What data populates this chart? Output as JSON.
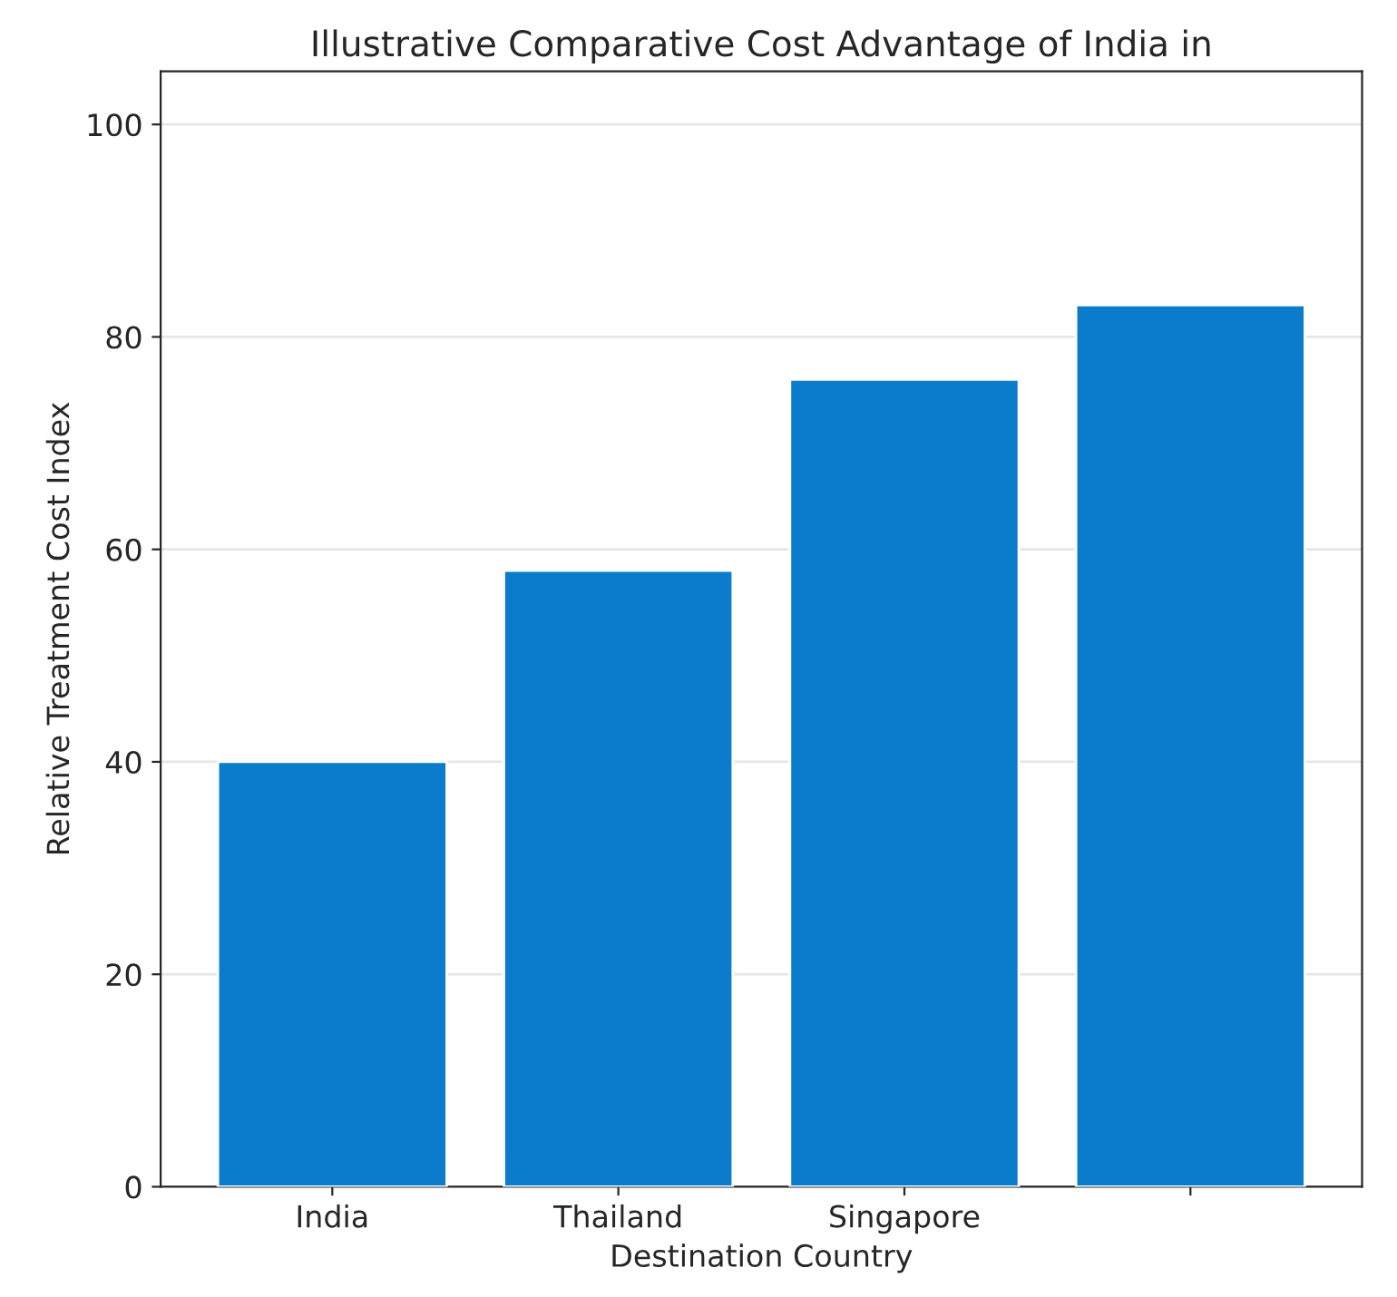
{
  "chart_data": {
    "type": "bar",
    "title": "Illustrative Comparative Cost Advantage of India in",
    "xlabel": "Destination Country",
    "ylabel": "Relative Treatment Cost Index",
    "categories": [
      "India",
      "Thailand",
      "Singapore",
      null
    ],
    "values": [
      40,
      58,
      76,
      83
    ],
    "color": "#0b7bcc",
    "ylim": [
      0,
      105
    ],
    "yticks": [
      0,
      20,
      40,
      60,
      80,
      100
    ],
    "grid": "y"
  }
}
